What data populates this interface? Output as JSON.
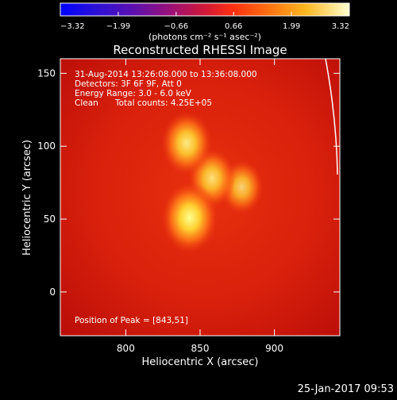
{
  "chart_data": {
    "type": "heatmap",
    "title": "Reconstructed RHESSI Image",
    "xlabel": "Heliocentric X (arcsec)",
    "ylabel": "Heliocentric Y (arcsec)",
    "xlim": [
      756,
      944
    ],
    "ylim": [
      -30,
      160
    ],
    "x_ticks": [
      800,
      850,
      900
    ],
    "x_tick_labels": [
      "800",
      "850",
      "900"
    ],
    "y_ticks": [
      0,
      50,
      100,
      150
    ],
    "y_tick_labels": [
      "0",
      "50",
      "100",
      "150"
    ],
    "colorbar": {
      "min": -3.32,
      "max": 3.32,
      "ticks": [
        -3.32,
        -1.99,
        -0.66,
        0.66,
        1.99,
        3.32
      ],
      "tick_labels": [
        "−3.32",
        "−1.99",
        "−0.66",
        "0.66",
        "1.99",
        "3.32"
      ],
      "units_label": "(photons cm⁻² s⁻¹ asec⁻²)"
    },
    "annotations": {
      "time_range": "31-Aug-2014 13:26:08.000 to 13:36:08.000",
      "detectors": "Detectors: 3F 6F 9F, Att 0",
      "energy_range": "Energy Range: 3.0 - 6.0 keV",
      "clean_label": "Clean",
      "total_counts": "Total counts: 4.25E+05",
      "peak_position": "Position of Peak = [843,51]"
    },
    "sources": [
      {
        "x": 843,
        "y": 51,
        "intensity": 3.32
      },
      {
        "x": 841,
        "y": 102,
        "intensity": 2.6
      },
      {
        "x": 858,
        "y": 78,
        "intensity": 2.2
      },
      {
        "x": 878,
        "y": 72,
        "intensity": 1.7
      }
    ],
    "background_level": 0.9
  },
  "footer": {
    "timestamp": "25-Jan-2017 09:53"
  },
  "colors": {
    "background": "#000000",
    "axis": "#ffffff",
    "map_base": "#e0200e",
    "map_peak": "#ffff80"
  }
}
